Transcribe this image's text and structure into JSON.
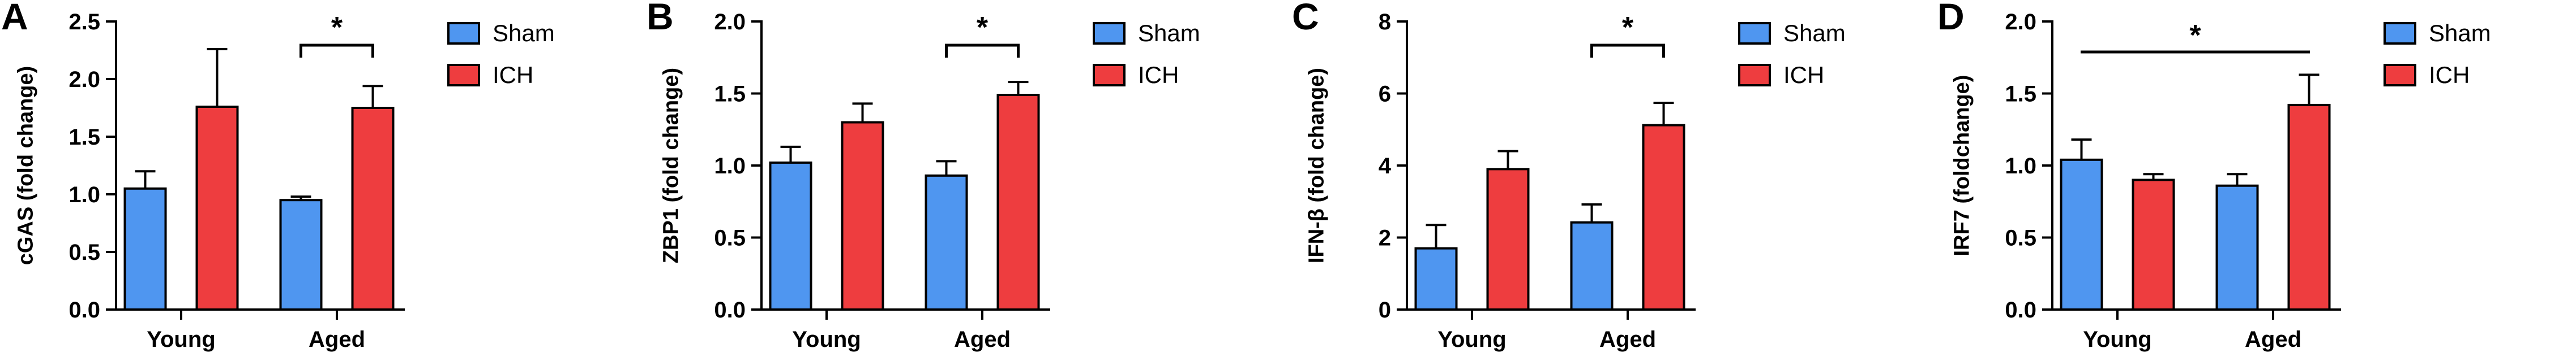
{
  "chart_data": [
    {
      "panel": "A",
      "type": "bar",
      "ylabel": "cGAS (fold change)",
      "ylim": [
        0,
        2.5
      ],
      "yticks": [
        "0.0",
        "0.5",
        "1.0",
        "1.5",
        "2.0",
        "2.5"
      ],
      "categories": [
        "Young",
        "Aged"
      ],
      "series": [
        {
          "name": "Sham",
          "color": "#4f96f0",
          "values": [
            1.05,
            0.95
          ],
          "errors": [
            0.15,
            0.03
          ]
        },
        {
          "name": "ICH",
          "color": "#ee3d3f",
          "values": [
            1.76,
            1.75
          ],
          "errors": [
            0.5,
            0.19
          ]
        }
      ],
      "significance": [
        {
          "group": "Aged",
          "label": "*"
        }
      ],
      "legend_position": "top-right"
    },
    {
      "panel": "B",
      "type": "bar",
      "ylabel": "ZBP1 (fold change)",
      "ylim": [
        0,
        2.0
      ],
      "yticks": [
        "0.0",
        "0.5",
        "1.0",
        "1.5",
        "2.0"
      ],
      "categories": [
        "Young",
        "Aged"
      ],
      "series": [
        {
          "name": "Sham",
          "color": "#4f96f0",
          "values": [
            1.02,
            0.93
          ],
          "errors": [
            0.11,
            0.1
          ]
        },
        {
          "name": "ICH",
          "color": "#ee3d3f",
          "values": [
            1.3,
            1.49
          ],
          "errors": [
            0.13,
            0.09
          ]
        }
      ],
      "significance": [
        {
          "group": "Aged",
          "label": "*"
        }
      ],
      "legend_position": "top-right"
    },
    {
      "panel": "C",
      "type": "bar",
      "ylabel": "IFN-β (fold change)",
      "ylim": [
        0,
        8
      ],
      "yticks": [
        "0",
        "2",
        "4",
        "6",
        "8"
      ],
      "categories": [
        "Young",
        "Aged"
      ],
      "series": [
        {
          "name": "Sham",
          "color": "#4f96f0",
          "values": [
            1.7,
            2.42
          ],
          "errors": [
            0.65,
            0.5
          ]
        },
        {
          "name": "ICH",
          "color": "#ee3d3f",
          "values": [
            3.9,
            5.12
          ],
          "errors": [
            0.5,
            0.62
          ]
        }
      ],
      "significance": [
        {
          "group": "Aged",
          "label": "*"
        }
      ],
      "legend_position": "top-right"
    },
    {
      "panel": "D",
      "type": "bar",
      "ylabel": "IRF7 (foldchange)",
      "ylim": [
        0,
        2.0
      ],
      "yticks": [
        "0.0",
        "0.5",
        "1.0",
        "1.5",
        "2.0"
      ],
      "categories": [
        "Young",
        "Aged"
      ],
      "series": [
        {
          "name": "Sham",
          "color": "#4f96f0",
          "values": [
            1.04,
            0.86
          ],
          "errors": [
            0.14,
            0.08
          ]
        },
        {
          "name": "ICH",
          "color": "#ee3d3f",
          "values": [
            0.9,
            1.42
          ],
          "errors": [
            0.04,
            0.21
          ]
        }
      ],
      "significance": [
        {
          "group": "all",
          "label": "*"
        }
      ],
      "legend_position": "top-right"
    }
  ]
}
